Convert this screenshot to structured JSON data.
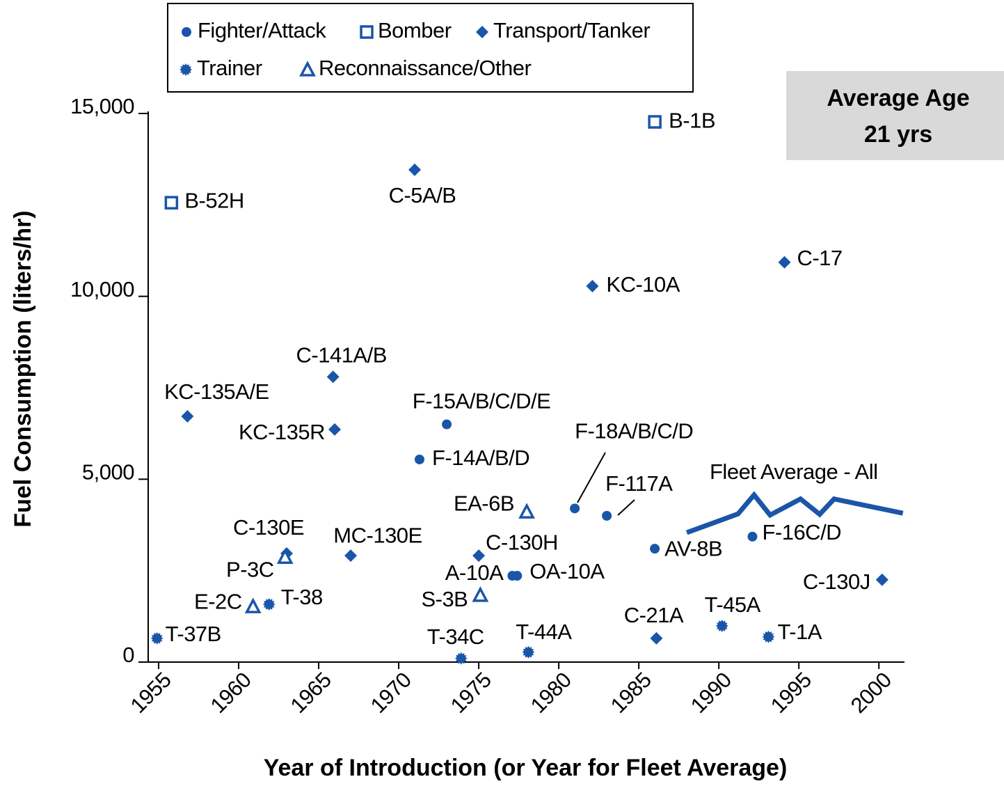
{
  "chart_data": {
    "type": "scatter",
    "x_label": "Year of Introduction (or Year for Fleet Average)",
    "y_label": "Fuel Consumption (liters/hr)",
    "annotation": [
      "Average Age",
      "21 yrs"
    ],
    "xlim": [
      1954.35,
      2001.6
    ],
    "ylim": [
      0,
      15000
    ],
    "xticks": [
      1955,
      1960,
      1965,
      1970,
      1975,
      1980,
      1985,
      1990,
      1995,
      2000
    ],
    "yticks": [
      0,
      {
        "value": 5000,
        "label": "5,000"
      },
      {
        "value": 10000,
        "label": "10,000"
      },
      {
        "value": 15000,
        "label": "15,000"
      }
    ],
    "series": [
      {
        "name": "Fighter/Attack",
        "marker": "circle",
        "color": "#1a56a8",
        "labels": [
          "F-15A/B/C/D/E",
          "F-14A/B/D",
          "F-18A/B/C/D",
          "F-117A",
          "AV-8B",
          "F-16C/D",
          "A-10A",
          "OA-10A"
        ],
        "x": [
          1973,
          1971.3,
          1981,
          1983,
          1986,
          1992.1,
          1977.1,
          1977.4
        ],
        "y": [
          6500,
          5540,
          4200,
          4000,
          3100,
          3430,
          2360,
          2360
        ]
      },
      {
        "name": "Bomber",
        "marker": "square",
        "color": "#1a56a8",
        "labels": [
          "B-52H",
          "B-1B"
        ],
        "x": [
          1955.8,
          1986
        ],
        "y": [
          12560,
          14770
        ]
      },
      {
        "name": "Transport/Tanker",
        "marker": "diamond",
        "color": "#1a56a8",
        "labels": [
          "C-5A/B",
          "KC-10A",
          "C-17",
          "C-141A/B",
          "KC-135A/E",
          "KC-135R",
          "MC-130E",
          "C-130E",
          "C-130H",
          "C-21A",
          "C-130J"
        ],
        "x": [
          1971,
          1982.1,
          1994.1,
          1965.9,
          1956.8,
          1966,
          1967,
          1963,
          1975,
          1986.1,
          2000.2
        ],
        "y": [
          13460,
          10280,
          10930,
          7800,
          6720,
          6360,
          2910,
          2970,
          2910,
          650,
          2250
        ]
      },
      {
        "name": "Trainer",
        "marker": "star",
        "color": "#1a56a8",
        "labels": [
          "T-37B",
          "T-38",
          "T-34C",
          "T-44A",
          "T-45A",
          "T-1A"
        ],
        "x": [
          1954.9,
          1961.9,
          1973.9,
          1978.1,
          1990.2,
          1993.1
        ],
        "y": [
          650,
          1580,
          100,
          270,
          990,
          690
        ]
      },
      {
        "name": "Reconnaissance/Other",
        "marker": "triangle",
        "color": "#1a56a8",
        "labels": [
          "EA-6B",
          "P-3C",
          "E-2C",
          "S-3B"
        ],
        "x": [
          1978,
          1962.9,
          1960.9,
          1975.1
        ],
        "y": [
          4110,
          2870,
          1520,
          1830
        ]
      },
      {
        "name": "Fleet Average - All",
        "marker": "line",
        "color": "#1a56a8",
        "x": [
          1988,
          1991.2,
          1992.2,
          1993.2,
          1995.1,
          1996.3,
          1997.2,
          2001.5
        ],
        "y": [
          3540,
          4050,
          4570,
          4020,
          4460,
          4040,
          4460,
          4070
        ]
      }
    ]
  }
}
